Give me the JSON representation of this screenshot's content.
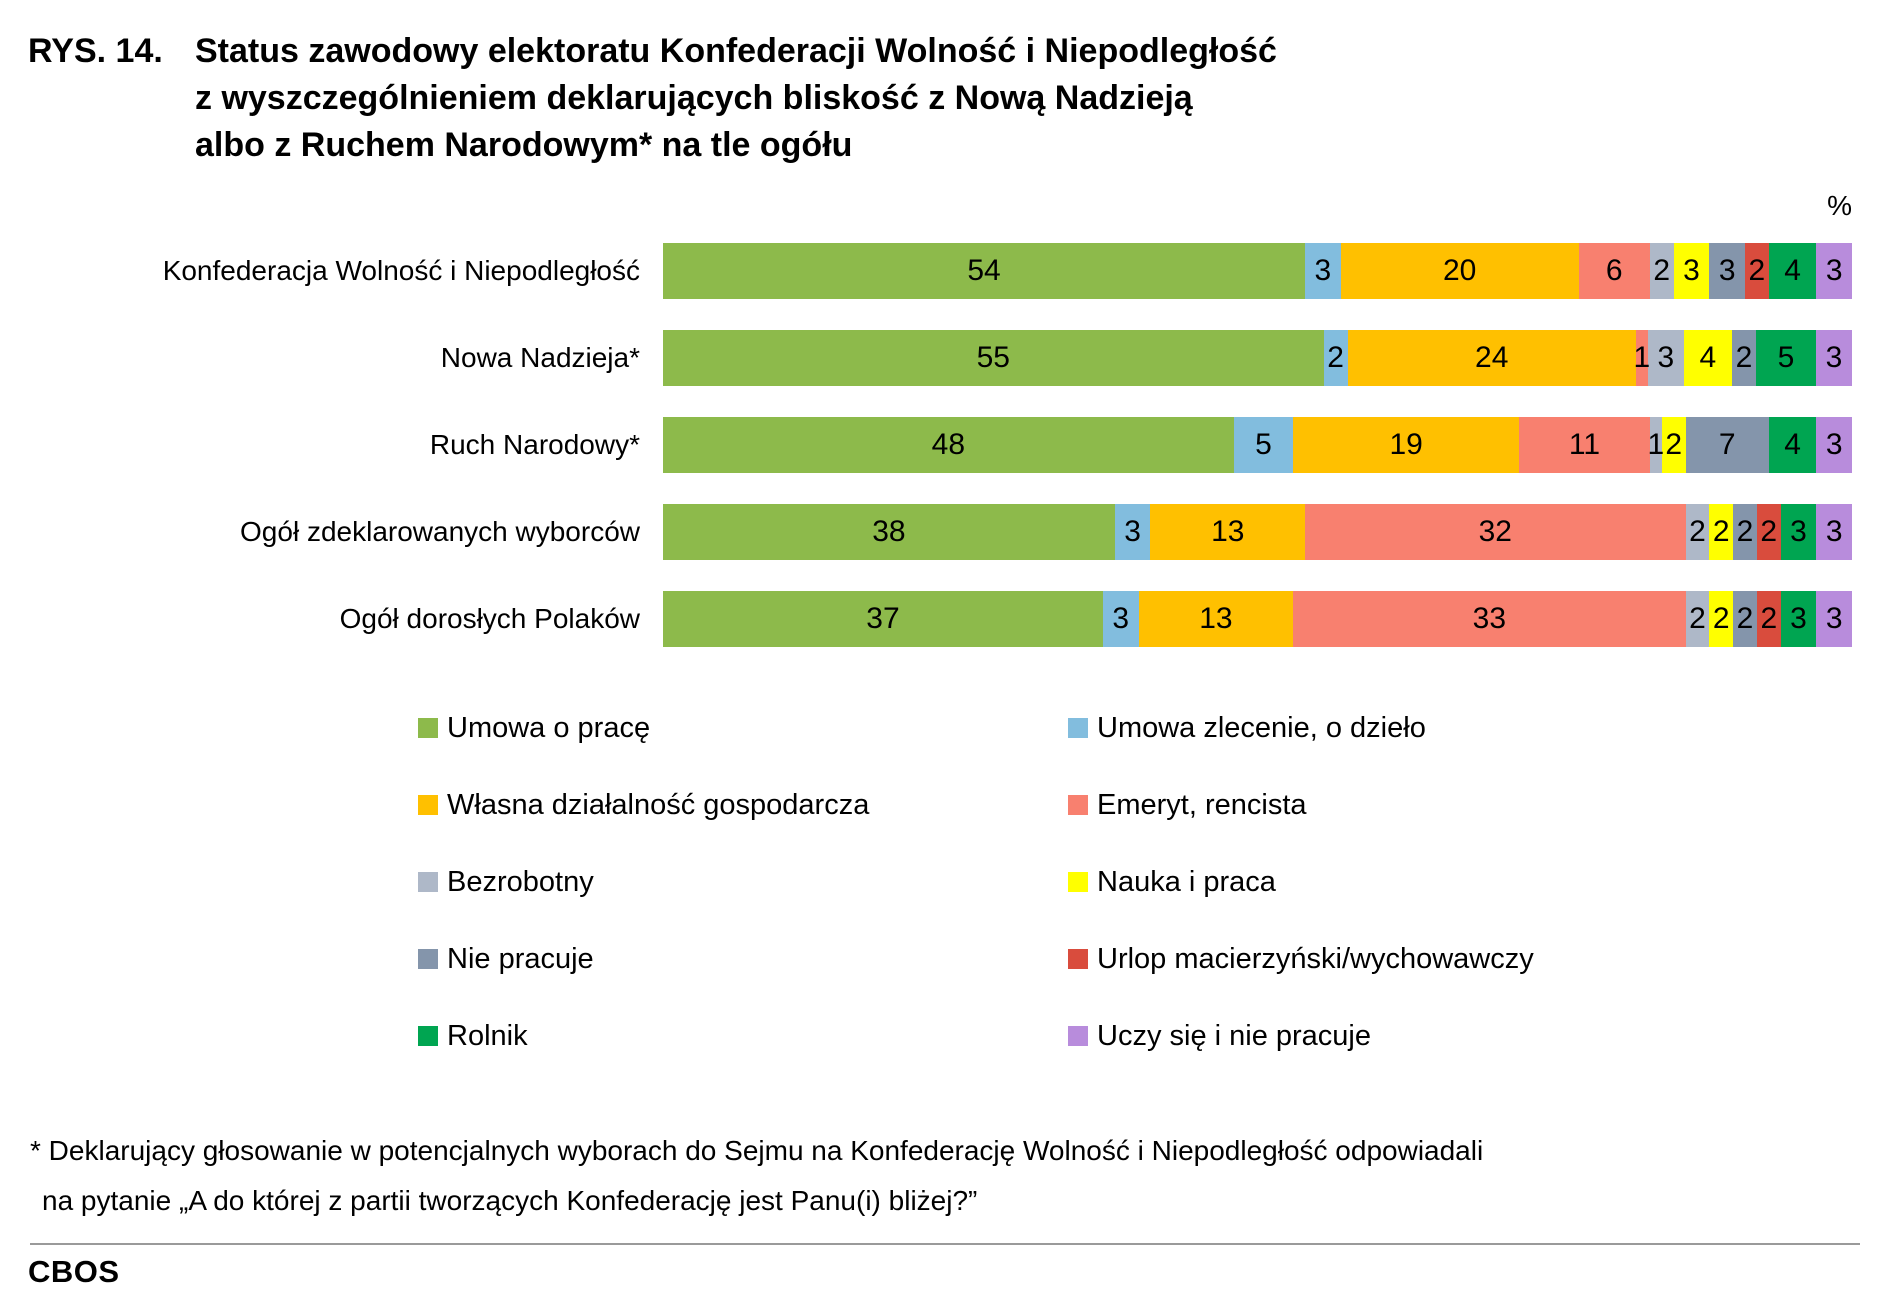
{
  "title": {
    "prefix": "RYS. 14.",
    "lines": [
      "Status zawodowy elektoratu Konfederacji Wolność i Niepodległość",
      "z wyszczególnieniem deklarujących bliskość z Nową Nadzieją",
      "albo z Ruchem Narodowym* na tle ogółu"
    ]
  },
  "unit_label": "%",
  "chart_data": {
    "type": "bar",
    "orientation": "horizontal",
    "stacked": true,
    "x_max": 100,
    "grid": false,
    "legend_position": "bottom",
    "value_labels": "inside",
    "categories": [
      "Konfederacja Wolność i Niepodległość",
      "Nowa Nadzieja*",
      "Ruch Narodowy*",
      "Ogół zdeklarowanych wyborców",
      "Ogół dorosłych Polaków"
    ],
    "series": [
      {
        "name": "Umowa o pracę",
        "color": "#8DBA4B",
        "values": [
          54,
          55,
          48,
          38,
          37
        ]
      },
      {
        "name": "Umowa zlecenie, o dzieło",
        "color": "#82BDDE",
        "values": [
          3,
          2,
          5,
          3,
          3
        ]
      },
      {
        "name": "Własna działalność gospodarcza",
        "color": "#FFC000",
        "values": [
          20,
          24,
          19,
          13,
          13
        ]
      },
      {
        "name": "Emeryt, rencista",
        "color": "#F8806F",
        "values": [
          6,
          1,
          11,
          32,
          33
        ]
      },
      {
        "name": "Bezrobotny",
        "color": "#AEB8C8",
        "values": [
          2,
          3,
          1,
          2,
          2
        ]
      },
      {
        "name": "Nauka i praca",
        "color": "#FFFF00",
        "values": [
          3,
          4,
          2,
          2,
          2
        ]
      },
      {
        "name": "Nie pracuje",
        "color": "#8495AB",
        "values": [
          3,
          2,
          7,
          2,
          2
        ]
      },
      {
        "name": "Urlop macierzyński/wychowawczy",
        "color": "#D94C3D",
        "values": [
          2,
          0,
          0,
          2,
          2
        ]
      },
      {
        "name": "Rolnik",
        "color": "#00A551",
        "values": [
          4,
          5,
          4,
          3,
          3
        ]
      },
      {
        "name": "Uczy się i nie pracuje",
        "color": "#B88CDC",
        "values": [
          3,
          3,
          3,
          3,
          3
        ]
      }
    ]
  },
  "legend": {
    "columns": [
      [
        0,
        2,
        4,
        6,
        8
      ],
      [
        1,
        3,
        5,
        7,
        9
      ]
    ]
  },
  "footnote": {
    "line1": "* Deklarujący głosowanie w potencjalnych wyborach do Sejmu na Konfederację Wolność i Niepodległość odpowiadali",
    "line2": "na pytanie  „A do której z partii tworzących Konfederację jest Panu(i) bliżej?”"
  },
  "footer": {
    "brand": "CBOS"
  }
}
